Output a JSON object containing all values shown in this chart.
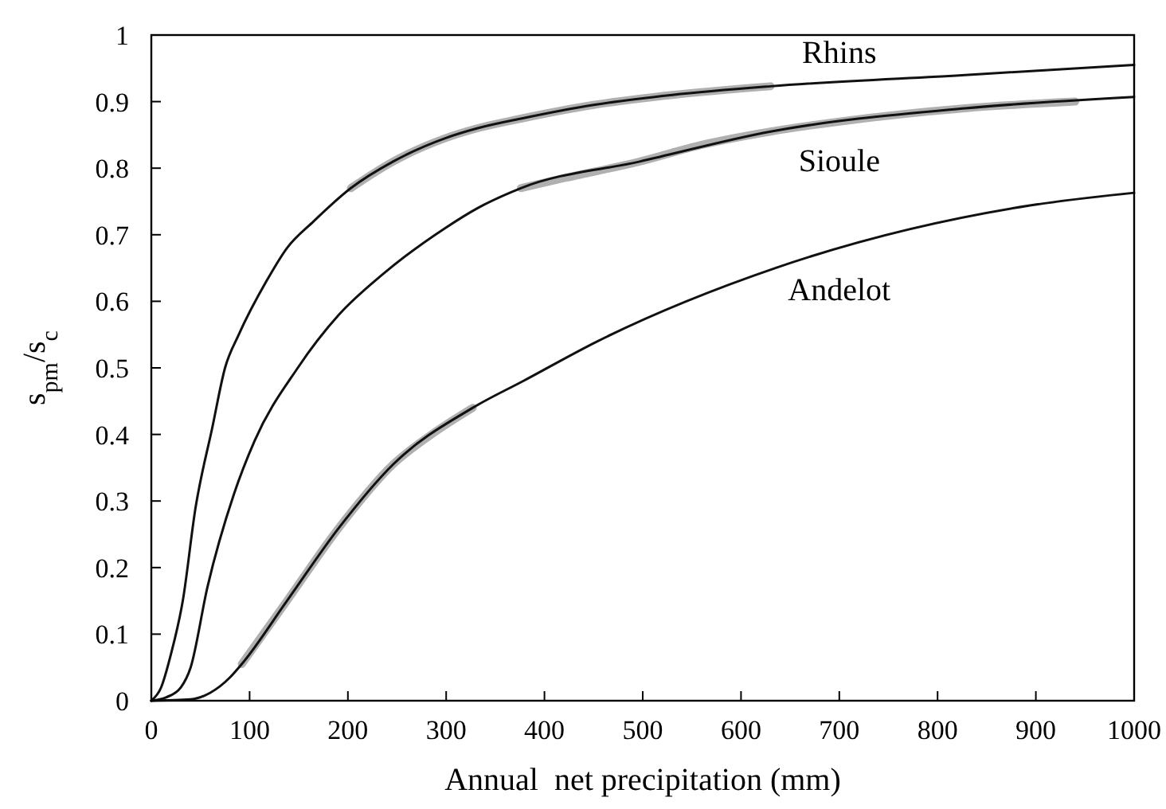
{
  "chart_data": {
    "type": "line",
    "xlabel": "Annual  net precipitation (mm)",
    "ylabel": "s$_{pm}$/s$_{c}$",
    "xlim": [
      0,
      1000
    ],
    "xticks": [
      0,
      100,
      200,
      300,
      400,
      500,
      600,
      700,
      800,
      900,
      1000
    ],
    "ylim": [
      0,
      1
    ],
    "yticks": [
      0,
      0.1,
      0.2,
      0.3,
      0.4,
      0.5,
      0.6,
      0.7,
      0.8,
      0.9,
      1
    ],
    "grid": false,
    "marker": "none",
    "line_style": "solid",
    "series": [
      {
        "color": "#b0b0b0",
        "x": [
          203,
          246,
          299,
          332,
          378,
          450,
          530,
          630
        ],
        "values": [
          0.77,
          0.81,
          0.845,
          0.86,
          0.875,
          0.895,
          0.91,
          0.923
        ]
      },
      {
        "color": "#b0b0b0",
        "x": [
          376,
          420,
          497,
          560,
          630,
          700,
          828,
          940
        ],
        "values": [
          0.77,
          0.785,
          0.81,
          0.835,
          0.855,
          0.87,
          0.89,
          0.9
        ]
      },
      {
        "color": "#b0b0b0",
        "x": [
          92,
          138,
          191,
          246,
          290,
          327
        ],
        "values": [
          0.055,
          0.15,
          0.26,
          0.355,
          0.405,
          0.44
        ]
      },
      {
        "name": "Rhins",
        "color": "#111111",
        "x": [
          0,
          10,
          20,
          32,
          45,
          62,
          75,
          89,
          117,
          138,
          165,
          203,
          246,
          299,
          332,
          378,
          450,
          530,
          630,
          828,
          1000
        ],
        "values": [
          0,
          0.02,
          0.07,
          0.15,
          0.29,
          0.41,
          0.5,
          0.55,
          0.63,
          0.68,
          0.72,
          0.77,
          0.81,
          0.845,
          0.86,
          0.875,
          0.895,
          0.91,
          0.923,
          0.94,
          0.955
        ]
      },
      {
        "name": "Sioule",
        "color": "#111111",
        "x": [
          0,
          15,
          30,
          40,
          57,
          84,
          105,
          149,
          191,
          235,
          299,
          332,
          376,
          497,
          630,
          828,
          1000
        ],
        "values": [
          0,
          0.005,
          0.02,
          0.05,
          0.17,
          0.31,
          0.39,
          0.5,
          0.58,
          0.64,
          0.71,
          0.74,
          0.77,
          0.81,
          0.855,
          0.89,
          0.907
        ]
      },
      {
        "name": "Andelot",
        "color": "#111111",
        "x": [
          0,
          40,
          60,
          80,
          92,
          138,
          191,
          246,
          327,
          378,
          454,
          635,
          894,
          1000
        ],
        "values": [
          0,
          0.002,
          0.012,
          0.035,
          0.055,
          0.15,
          0.26,
          0.355,
          0.44,
          0.48,
          0.54,
          0.65,
          0.744,
          0.763
        ]
      }
    ]
  }
}
